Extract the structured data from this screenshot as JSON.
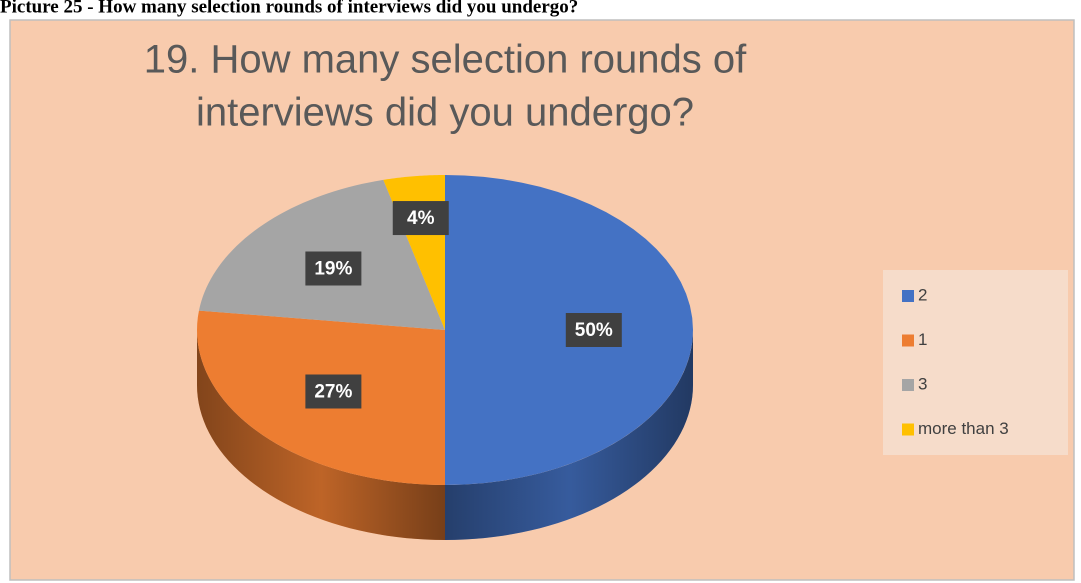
{
  "caption": "Picture 25 - How many selection rounds of interviews did you undergo?",
  "chart_data": {
    "type": "pie3d",
    "title": [
      "19. How many selection rounds of",
      "interviews did you undergo?"
    ],
    "categories": [
      "2",
      "1",
      "3",
      "more than 3"
    ],
    "values": [
      50,
      27,
      19,
      4
    ],
    "value_labels": [
      "50%",
      "27%",
      "19%",
      "4%"
    ],
    "colors": [
      "#4472c4",
      "#ed7d31",
      "#a5a5a5",
      "#ffc000"
    ],
    "legend": "right"
  }
}
